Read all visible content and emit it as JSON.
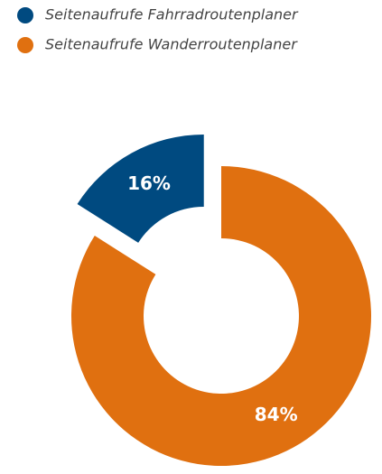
{
  "chart_data": {
    "type": "donut",
    "categories": [
      "Seitenaufrufe Fahrradroutenplaner",
      "Seitenaufrufe Wanderroutenplaner"
    ],
    "values": [
      16,
      84
    ],
    "value_labels": [
      "16%",
      "84%"
    ],
    "colors": [
      "#004a80",
      "#e07010"
    ],
    "exploded": [
      true,
      false
    ]
  }
}
